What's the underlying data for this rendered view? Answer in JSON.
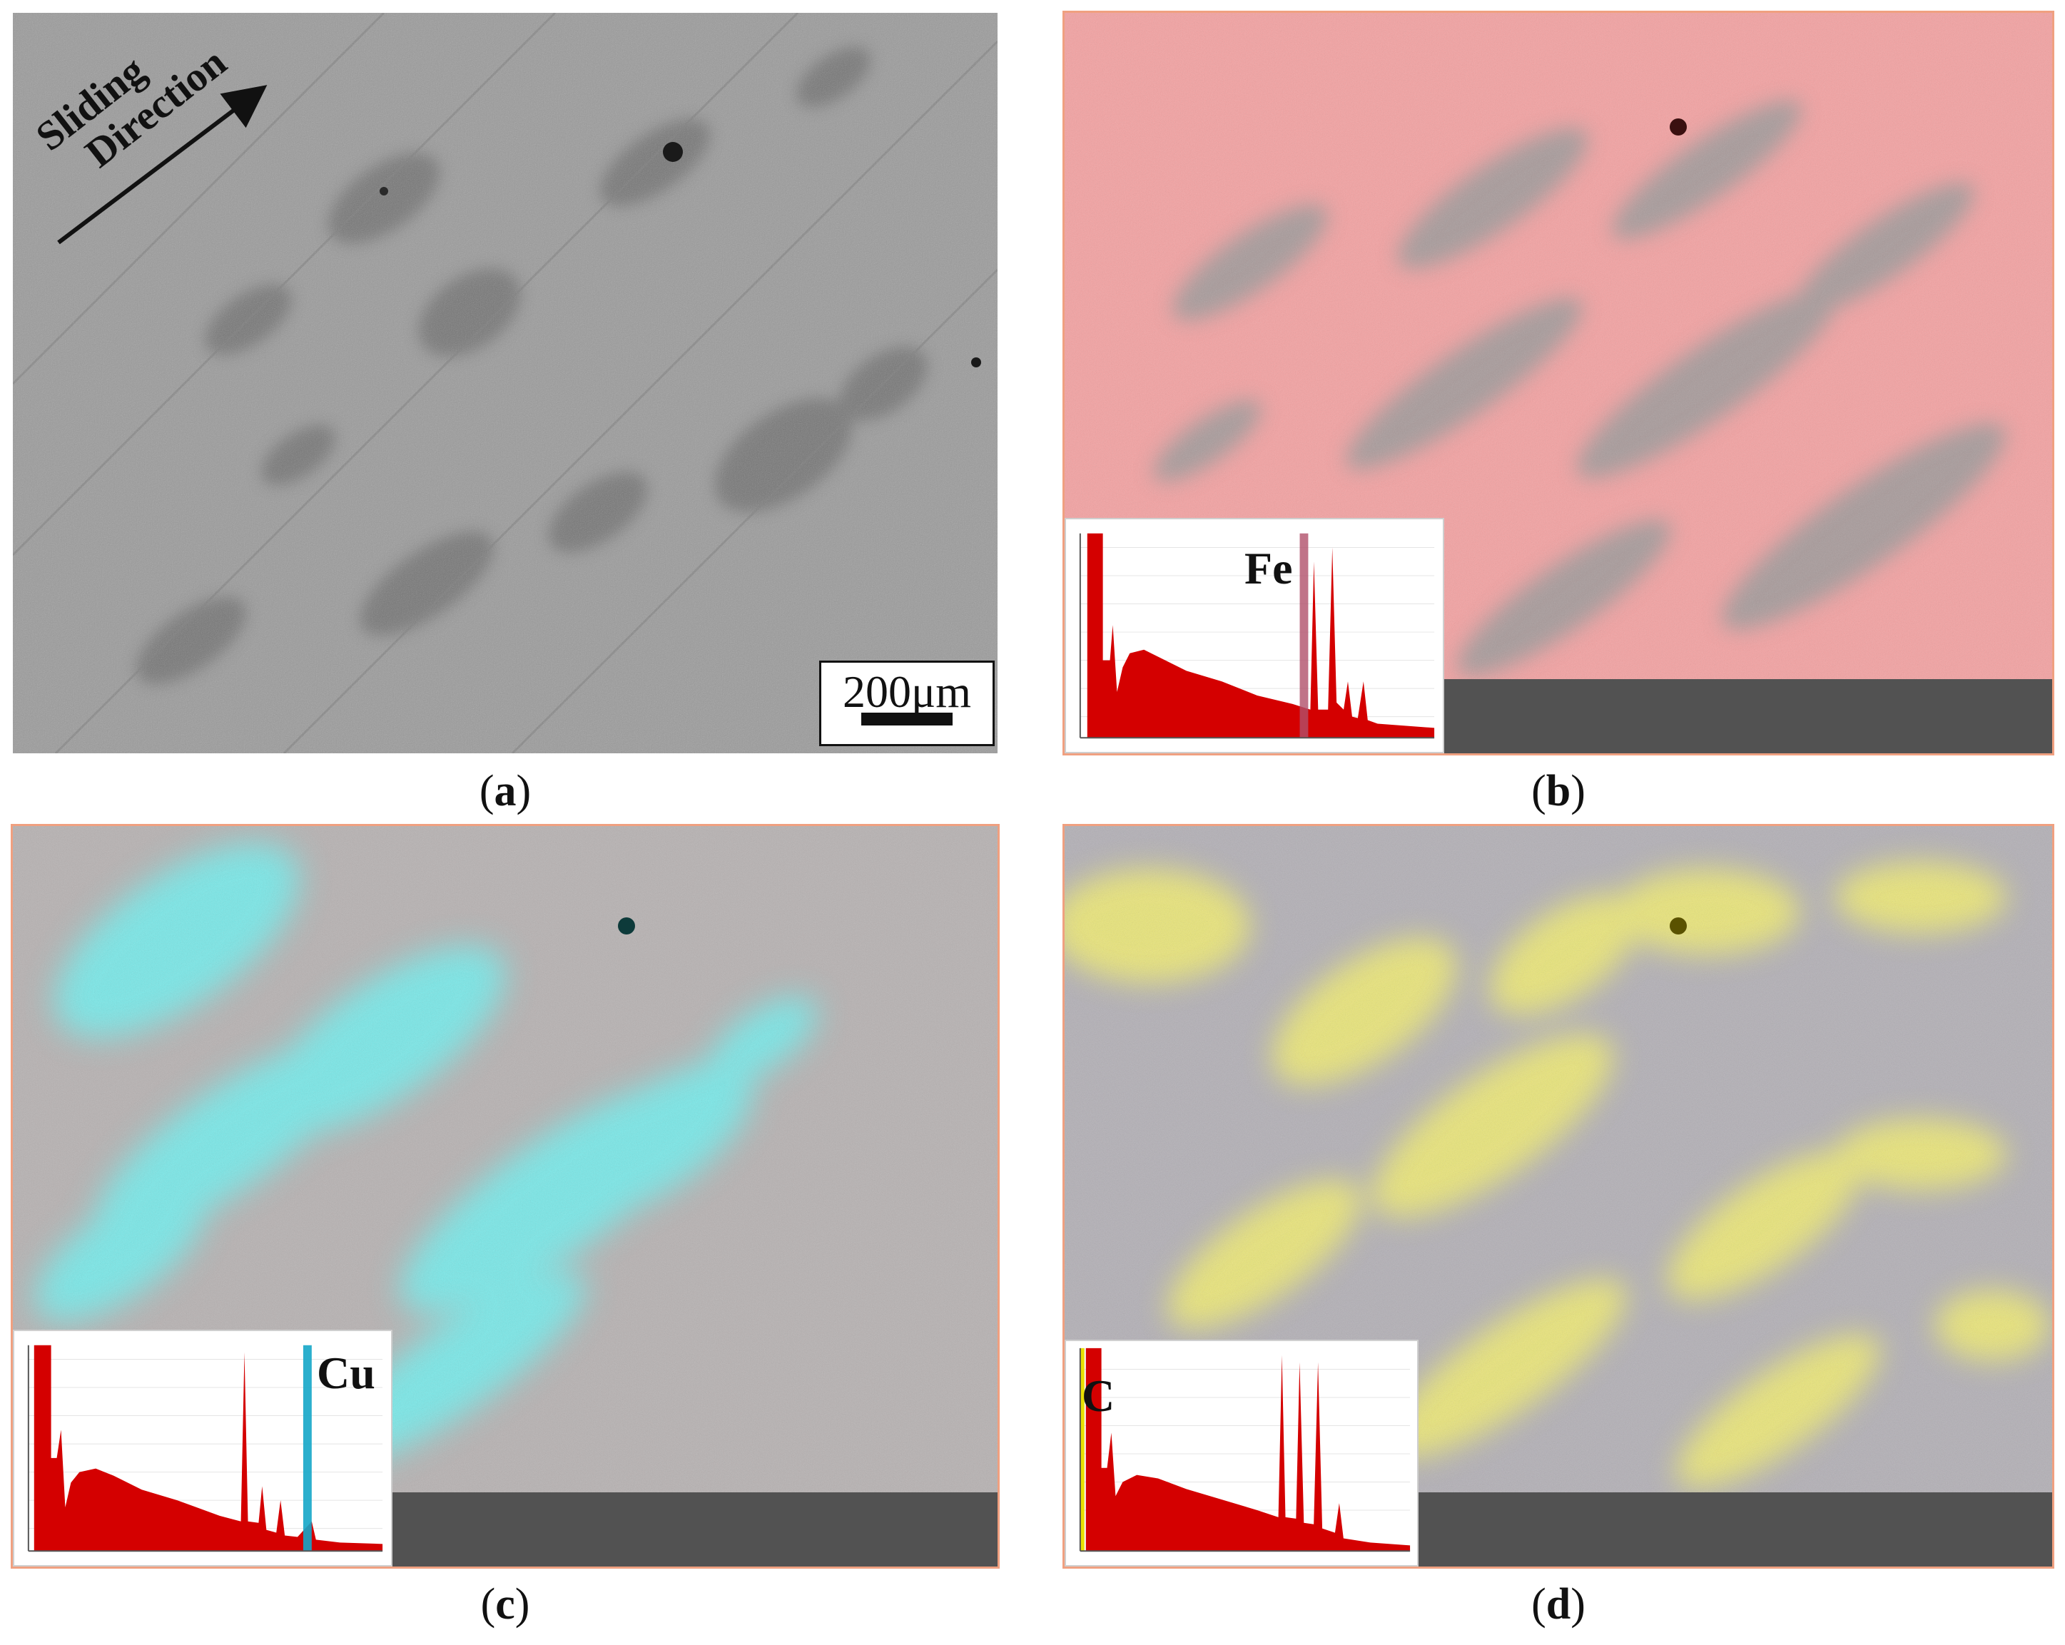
{
  "panels": [
    {
      "id": "a",
      "caption": "a",
      "tint": "none"
    },
    {
      "id": "b",
      "caption": "b",
      "tint": "#ff8a8a",
      "element": "Fe"
    },
    {
      "id": "c",
      "caption": "c",
      "tint": "#6ff0f0",
      "element": "Cu"
    },
    {
      "id": "d",
      "caption": "d",
      "tint": "#f6f07a",
      "element": "C"
    }
  ],
  "sliding_label": {
    "line1": "Sliding",
    "line2": "Direction"
  },
  "scale_bar": "200μm",
  "spectrum_fill": "#d40000",
  "marker_colors": {
    "Fe": "#b0506a",
    "Cu": "#14a6c8",
    "C": "#e8e000"
  }
}
